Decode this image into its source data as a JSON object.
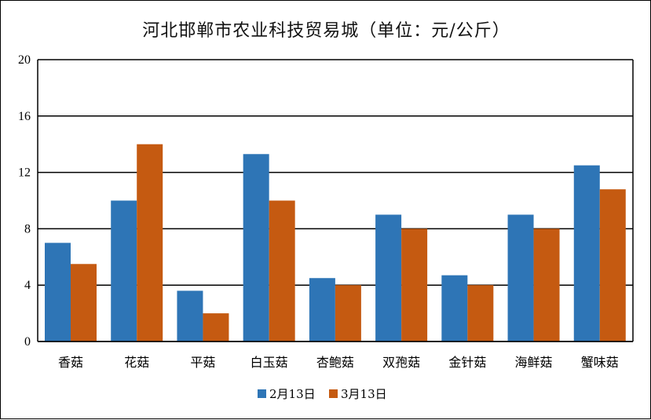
{
  "chart_data": {
    "type": "bar",
    "title": "河北邯郸市农业科技贸易城（单位：元/公斤）",
    "categories": [
      "香菇",
      "花菇",
      "平菇",
      "白玉菇",
      "杏鲍菇",
      "双孢菇",
      "金针菇",
      "海鲜菇",
      "蟹味菇"
    ],
    "series": [
      {
        "name": "2月13日",
        "color": "#2e75b6",
        "values": [
          7.0,
          10.0,
          3.6,
          13.3,
          4.5,
          9.0,
          4.7,
          9.0,
          12.5
        ]
      },
      {
        "name": "3月13日",
        "color": "#c55a11",
        "values": [
          5.5,
          14.0,
          2.0,
          10.0,
          4.0,
          8.0,
          4.0,
          8.0,
          10.8
        ]
      }
    ],
    "ylim": [
      0,
      20
    ],
    "yticks": [
      0,
      4,
      8,
      12,
      16,
      20
    ],
    "grid": true,
    "legend": "bottom"
  }
}
